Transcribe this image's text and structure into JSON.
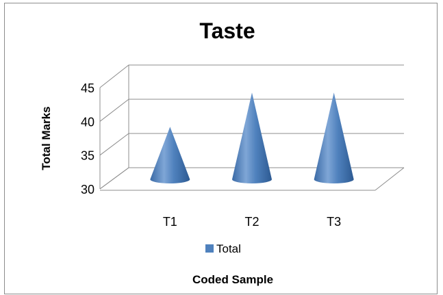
{
  "chart_data": {
    "type": "bar",
    "style": "3d-cone",
    "title": "Taste",
    "xlabel": "Coded Sample",
    "ylabel": "Total Marks",
    "categories": [
      "T1",
      "T2",
      "T3"
    ],
    "series": [
      {
        "name": "Total",
        "values": [
          37.5,
          42.5,
          42.5
        ],
        "color": "#4f81bd"
      }
    ],
    "ylim": [
      30,
      45
    ],
    "yticks": [
      "30",
      "35",
      "40",
      "45"
    ],
    "grid": true,
    "legend": "bottom"
  }
}
